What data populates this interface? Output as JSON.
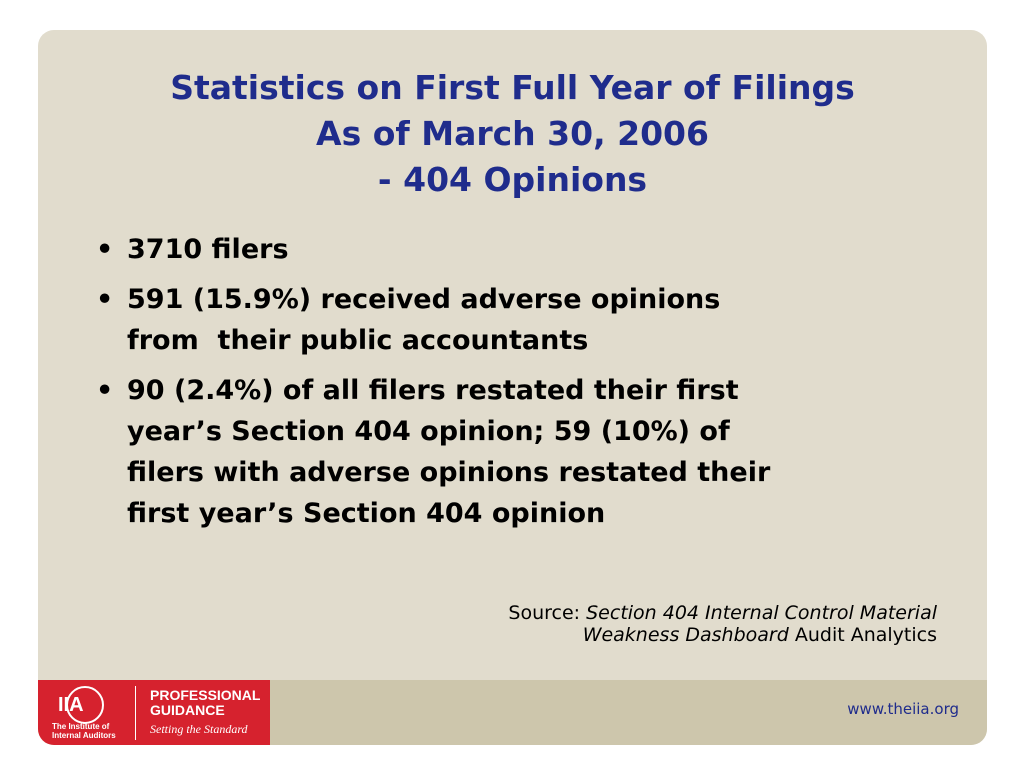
{
  "slide": {
    "title_lines": [
      "Statistics on First Full Year of Filings",
      "As of March 30, 2006",
      "- 404 Opinions"
    ],
    "bullets": [
      {
        "lines": [
          "3710 filers"
        ]
      },
      {
        "lines": [
          "591 (15.9%) received adverse opinions",
          "from  their public accountants"
        ]
      },
      {
        "lines": [
          "90 (2.4%) of all filers restated their first",
          "year’s Section 404 opinion; 59 (10%) of",
          "filers with adverse opinions restated their",
          "first year’s Section 404 opinion"
        ]
      }
    ],
    "source": {
      "label": "Source:",
      "work_lines": [
        "Section 404 Internal Control Material",
        "Weakness Dashboard"
      ],
      "publisher": "Audit Analytics"
    }
  },
  "footer": {
    "logo": {
      "mark": "IIA",
      "org_lines": [
        "The Institute of",
        "Internal Auditors"
      ],
      "program_lines": [
        "PROFESSIONAL",
        "GUIDANCE"
      ],
      "tagline": "Setting the Standard"
    },
    "url": "www.theiia.org"
  }
}
